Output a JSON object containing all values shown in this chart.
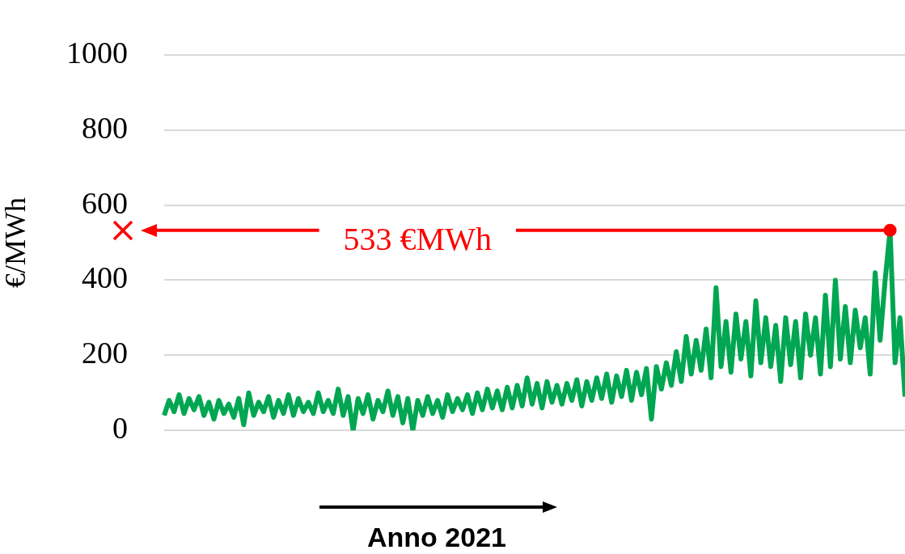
{
  "chart_data": {
    "type": "line",
    "ylabel": "€/MWh",
    "xlabel": "Anno 2021",
    "categories": [
      null,
      null,
      null,
      null,
      null,
      null,
      null,
      null,
      null,
      null,
      null,
      null,
      null,
      null,
      null,
      null,
      null,
      null,
      null,
      null,
      null,
      null,
      null,
      null,
      null,
      null,
      null,
      null,
      null,
      null,
      null,
      null,
      null,
      null,
      null,
      null,
      null,
      null,
      null,
      null,
      null,
      null,
      null,
      null,
      null,
      null,
      null,
      null,
      null,
      null,
      null,
      null,
      null,
      null,
      null,
      null,
      null,
      null,
      null,
      null,
      null,
      null,
      null,
      null,
      null,
      null,
      null,
      null,
      null,
      null,
      null,
      null,
      null,
      null,
      null,
      null,
      null,
      null,
      null,
      null,
      null,
      null,
      null,
      null,
      null,
      null,
      null,
      null,
      null,
      null,
      null,
      null,
      null,
      null,
      null,
      null,
      null,
      null,
      null,
      null,
      null,
      null,
      null,
      null,
      null,
      null,
      null,
      null,
      null,
      null,
      null,
      null,
      null,
      null,
      null,
      null,
      null,
      null,
      null,
      null,
      null,
      null,
      null,
      null,
      null,
      null,
      null,
      null,
      null,
      null,
      null,
      null,
      null,
      null,
      null,
      null,
      null,
      null,
      null,
      null,
      null,
      null,
      null,
      null,
      null,
      null,
      null,
      null,
      null,
      null
    ],
    "series": [
      {
        "color": "#00a651",
        "values": [
          40,
          80,
          50,
          95,
          45,
          85,
          55,
          90,
          40,
          75,
          30,
          80,
          45,
          70,
          35,
          85,
          15,
          100,
          40,
          75,
          50,
          90,
          35,
          80,
          45,
          95,
          40,
          85,
          50,
          75,
          45,
          100,
          50,
          80,
          45,
          110,
          40,
          90,
          0,
          85,
          45,
          95,
          30,
          80,
          50,
          105,
          40,
          90,
          20,
          85,
          0,
          80,
          40,
          90,
          45,
          80,
          35,
          95,
          50,
          85,
          55,
          95,
          45,
          100,
          55,
          110,
          60,
          105,
          55,
          115,
          60,
          120,
          65,
          140,
          70,
          125,
          60,
          130,
          75,
          120,
          70,
          125,
          80,
          135,
          65,
          130,
          80,
          140,
          85,
          150,
          75,
          145,
          90,
          160,
          80,
          155,
          95,
          165,
          30,
          170,
          110,
          180,
          120,
          210,
          130,
          250,
          150,
          240,
          160,
          270,
          140,
          380,
          170,
          290,
          155,
          310,
          190,
          290,
          145,
          345,
          180,
          300,
          170,
          280,
          130,
          300,
          175,
          290,
          140,
          310,
          200,
          300,
          150,
          360,
          170,
          400,
          190,
          330,
          180,
          320,
          220,
          300,
          150,
          420,
          240,
          400,
          533,
          180,
          300,
          90
        ]
      }
    ],
    "ylim": [
      0,
      1000
    ],
    "yticks": [
      0,
      200,
      400,
      600,
      800,
      1000
    ],
    "grid": "y",
    "legend": false,
    "marker": "none",
    "line_style": "solid",
    "ref_lines": [
      {
        "axis": "y",
        "value": 533,
        "label": "533 €MWh",
        "color": "#ff0000"
      }
    ]
  }
}
